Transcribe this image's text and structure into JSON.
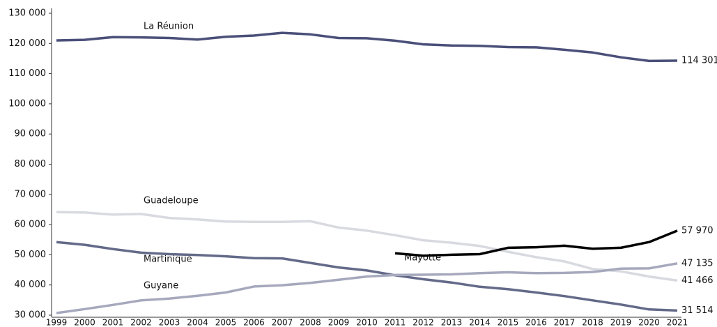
{
  "chart_data": {
    "type": "line",
    "x": [
      "1999",
      "2000",
      "2001",
      "2002",
      "2003",
      "2004",
      "2005",
      "2006",
      "2007",
      "2008",
      "2009",
      "2010",
      "2011",
      "2012",
      "2013",
      "2014",
      "2015",
      "2016",
      "2017",
      "2018",
      "2019",
      "2020",
      "2021"
    ],
    "ylim": [
      30000,
      130000
    ],
    "yticks": [
      {
        "value": 30000,
        "label": "30 000"
      },
      {
        "value": 40000,
        "label": "40 000"
      },
      {
        "value": 50000,
        "label": "50 000"
      },
      {
        "value": 60000,
        "label": "60 000"
      },
      {
        "value": 70000,
        "label": "70 000"
      },
      {
        "value": 80000,
        "label": "80 000"
      },
      {
        "value": 90000,
        "label": "90 000"
      },
      {
        "value": 100000,
        "label": "100 000"
      },
      {
        "value": 110000,
        "label": "110 000"
      },
      {
        "value": 120000,
        "label": "120 000"
      },
      {
        "value": 130000,
        "label": "130 000"
      }
    ],
    "series": [
      {
        "name": "La Réunion",
        "color": "#4a5079",
        "values": [
          121000,
          121200,
          122100,
          122000,
          121800,
          121300,
          122200,
          122600,
          123500,
          123000,
          121800,
          121700,
          120900,
          119700,
          119300,
          119200,
          118800,
          118700,
          117900,
          117000,
          115400,
          114200,
          114301
        ],
        "end_label": "114 301"
      },
      {
        "name": "Guadeloupe",
        "color": "#d8dae0",
        "values": [
          64100,
          64000,
          63300,
          63500,
          62200,
          61700,
          61000,
          60900,
          60900,
          61100,
          59000,
          58000,
          56500,
          54800,
          54000,
          52900,
          51000,
          49200,
          47800,
          45300,
          44500,
          42800,
          41466
        ],
        "end_label": "41 466"
      },
      {
        "name": "Martinique",
        "color": "#636a89",
        "values": [
          54200,
          53300,
          51900,
          50700,
          50200,
          49900,
          49500,
          48900,
          48800,
          47300,
          45800,
          44800,
          43200,
          41900,
          40800,
          39400,
          38600,
          37500,
          36300,
          34900,
          33500,
          31900,
          31514
        ],
        "end_label": "31 514"
      },
      {
        "name": "Guyane",
        "color": "#a6a9bd",
        "values": [
          30700,
          32000,
          33400,
          34900,
          35500,
          36400,
          37500,
          39500,
          39900,
          40700,
          41700,
          42800,
          43300,
          43400,
          43500,
          43900,
          44200,
          43900,
          44000,
          44300,
          45400,
          45500,
          47135
        ],
        "end_label": "47 135"
      },
      {
        "name": "Mayotte",
        "color": "#000000",
        "values": [
          null,
          null,
          null,
          null,
          null,
          null,
          null,
          null,
          null,
          null,
          null,
          null,
          50500,
          49700,
          50000,
          50200,
          52300,
          52500,
          53000,
          52000,
          52300,
          54200,
          57970
        ],
        "end_label": "57 970"
      }
    ]
  }
}
